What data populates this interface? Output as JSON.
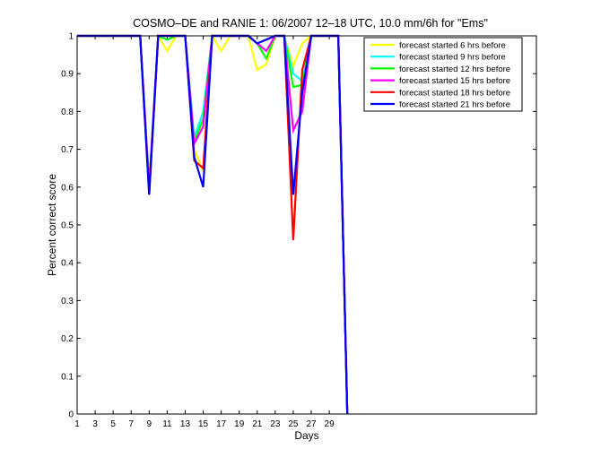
{
  "chart_data": {
    "type": "line",
    "title": "COSMO–DE and RANIE 1: 06/2007 12–18 UTC, 10.0 mm/6h for \"Ems\"",
    "xlabel": "Days",
    "ylabel": "Percent correct score",
    "xlim": [
      1,
      52
    ],
    "ylim": [
      0,
      1
    ],
    "grid": false,
    "legend_position": "top-right",
    "x_ticks": [
      1,
      3,
      5,
      7,
      9,
      11,
      13,
      15,
      17,
      19,
      21,
      23,
      25,
      27,
      29
    ],
    "x_tick_labels": [
      "1",
      "3",
      "5",
      "7",
      "9",
      "11",
      "13",
      "15",
      "17",
      "19",
      "21",
      "23",
      "25",
      "27",
      "29"
    ],
    "y_ticks": [
      0,
      0.1,
      0.2,
      0.3,
      0.4,
      0.5,
      0.6,
      0.7,
      0.8,
      0.9,
      1
    ],
    "y_tick_labels": [
      "0",
      "0.1",
      "0.2",
      "0.3",
      "0.4",
      "0.5",
      "0.6",
      "0.7",
      "0.8",
      "0.9",
      "1"
    ],
    "series": [
      {
        "name": "forecast started 6 hrs before",
        "color": "#ffff00",
        "points": [
          [
            1,
            1
          ],
          [
            8,
            1
          ],
          [
            9,
            0.61
          ],
          [
            10,
            1
          ],
          [
            11,
            0.96
          ],
          [
            12,
            1
          ],
          [
            13,
            1
          ],
          [
            14,
            0.7
          ],
          [
            15,
            0.64
          ],
          [
            16,
            1
          ],
          [
            17,
            0.96
          ],
          [
            18,
            1
          ],
          [
            19,
            1
          ],
          [
            20,
            1
          ],
          [
            21,
            0.91
          ],
          [
            22,
            0.925
          ],
          [
            23,
            1
          ],
          [
            24,
            1
          ],
          [
            25,
            0.92
          ],
          [
            26,
            0.98
          ],
          [
            27,
            1
          ],
          [
            28,
            1
          ],
          [
            29,
            1
          ],
          [
            30,
            1
          ],
          [
            31,
            0
          ]
        ]
      },
      {
        "name": "forecast started 9 hrs before",
        "color": "#00ffff",
        "points": [
          [
            1,
            1
          ],
          [
            8,
            1
          ],
          [
            9,
            0.6
          ],
          [
            10,
            1
          ],
          [
            11,
            0.99
          ],
          [
            12,
            1
          ],
          [
            13,
            1
          ],
          [
            14,
            0.73
          ],
          [
            15,
            0.8
          ],
          [
            16,
            1
          ],
          [
            17,
            1
          ],
          [
            18,
            1
          ],
          [
            19,
            1
          ],
          [
            20,
            1
          ],
          [
            21,
            0.98
          ],
          [
            22,
            0.99
          ],
          [
            23,
            1
          ],
          [
            24,
            1
          ],
          [
            25,
            0.9
          ],
          [
            26,
            0.88
          ],
          [
            27,
            1
          ],
          [
            28,
            1
          ],
          [
            29,
            1
          ],
          [
            30,
            1
          ],
          [
            31,
            0
          ]
        ]
      },
      {
        "name": "forecast started 12 hrs before",
        "color": "#00ff00",
        "points": [
          [
            1,
            1
          ],
          [
            8,
            1
          ],
          [
            9,
            0.6
          ],
          [
            10,
            1
          ],
          [
            11,
            0.99
          ],
          [
            12,
            1
          ],
          [
            13,
            1
          ],
          [
            14,
            0.72
          ],
          [
            15,
            0.78
          ],
          [
            16,
            1
          ],
          [
            17,
            1
          ],
          [
            18,
            1
          ],
          [
            19,
            1
          ],
          [
            20,
            1
          ],
          [
            21,
            0.98
          ],
          [
            22,
            0.94
          ],
          [
            23,
            1
          ],
          [
            24,
            1
          ],
          [
            25,
            0.865
          ],
          [
            26,
            0.87
          ],
          [
            27,
            1
          ],
          [
            28,
            1
          ],
          [
            29,
            1
          ],
          [
            30,
            1
          ],
          [
            31,
            0
          ]
        ]
      },
      {
        "name": "forecast started 15 hrs before",
        "color": "#ff00ff",
        "points": [
          [
            1,
            1
          ],
          [
            8,
            1
          ],
          [
            9,
            0.6
          ],
          [
            10,
            1
          ],
          [
            11,
            1
          ],
          [
            12,
            1
          ],
          [
            13,
            1
          ],
          [
            14,
            0.715
          ],
          [
            15,
            0.76
          ],
          [
            16,
            1
          ],
          [
            17,
            1
          ],
          [
            18,
            1
          ],
          [
            19,
            1
          ],
          [
            20,
            1
          ],
          [
            21,
            0.98
          ],
          [
            22,
            0.96
          ],
          [
            23,
            1
          ],
          [
            24,
            1
          ],
          [
            25,
            0.75
          ],
          [
            26,
            0.8
          ],
          [
            27,
            1
          ],
          [
            28,
            1
          ],
          [
            29,
            1
          ],
          [
            30,
            1
          ],
          [
            31,
            0
          ]
        ]
      },
      {
        "name": "forecast started 18 hrs before",
        "color": "#ff0000",
        "points": [
          [
            1,
            1
          ],
          [
            8,
            1
          ],
          [
            9,
            0.58
          ],
          [
            10,
            1
          ],
          [
            11,
            1
          ],
          [
            12,
            1
          ],
          [
            13,
            1
          ],
          [
            14,
            0.67
          ],
          [
            15,
            0.65
          ],
          [
            16,
            1
          ],
          [
            17,
            1
          ],
          [
            18,
            1
          ],
          [
            19,
            1
          ],
          [
            20,
            1
          ],
          [
            21,
            0.98
          ],
          [
            22,
            0.99
          ],
          [
            23,
            1
          ],
          [
            24,
            1
          ],
          [
            25,
            0.46
          ],
          [
            26,
            0.91
          ],
          [
            27,
            1
          ],
          [
            28,
            1
          ],
          [
            29,
            1
          ],
          [
            30,
            1
          ],
          [
            31,
            0
          ]
        ]
      },
      {
        "name": "forecast started 21 hrs before",
        "color": "#0000ff",
        "points": [
          [
            1,
            1
          ],
          [
            8,
            1
          ],
          [
            9,
            0.58
          ],
          [
            10,
            1
          ],
          [
            11,
            1
          ],
          [
            12,
            1
          ],
          [
            13,
            1
          ],
          [
            14,
            0.68
          ],
          [
            15,
            0.6
          ],
          [
            16,
            1
          ],
          [
            17,
            1
          ],
          [
            18,
            1
          ],
          [
            19,
            1
          ],
          [
            20,
            1
          ],
          [
            21,
            0.98
          ],
          [
            22,
            0.99
          ],
          [
            23,
            1
          ],
          [
            24,
            1
          ],
          [
            25,
            0.58
          ],
          [
            26,
            0.85
          ],
          [
            27,
            1
          ],
          [
            28,
            1
          ],
          [
            29,
            1
          ],
          [
            30,
            1
          ],
          [
            31,
            0
          ]
        ]
      }
    ]
  }
}
